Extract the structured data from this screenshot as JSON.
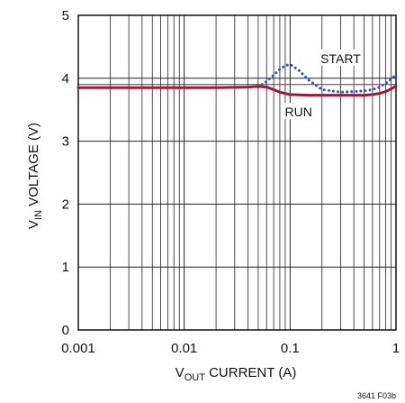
{
  "chart_data": {
    "type": "line",
    "title": "",
    "xlabel": {
      "main": "V",
      "sub": "OUT",
      "rest": " CURRENT (A)"
    },
    "ylabel": {
      "main": "V",
      "sub": "IN",
      "rest": " VOLTAGE (V)"
    },
    "x_scale": "log",
    "xlim": [
      0.001,
      1
    ],
    "ylim": [
      0,
      5
    ],
    "x_ticks": [
      {
        "value": 0.001,
        "label": "0.001"
      },
      {
        "value": 0.01,
        "label": "0.01"
      },
      {
        "value": 0.1,
        "label": "0.1"
      },
      {
        "value": 1,
        "label": "1"
      }
    ],
    "y_ticks": [
      {
        "value": 0,
        "label": "0"
      },
      {
        "value": 1,
        "label": "1"
      },
      {
        "value": 2,
        "label": "2"
      },
      {
        "value": 3,
        "label": "3"
      },
      {
        "value": 4,
        "label": "4"
      },
      {
        "value": 5,
        "label": "5"
      }
    ],
    "grid": true,
    "highlight_line_y": 3.9,
    "series": [
      {
        "name": "START",
        "style": "dotted",
        "color": "#3355aa",
        "x": [
          0.05,
          0.06,
          0.07,
          0.08,
          0.09,
          0.1,
          0.12,
          0.15,
          0.2,
          0.3,
          0.4,
          0.5,
          0.6,
          0.7,
          0.8,
          0.9,
          1.0
        ],
        "y": [
          3.86,
          3.95,
          4.05,
          4.14,
          4.2,
          4.22,
          4.13,
          3.97,
          3.82,
          3.78,
          3.79,
          3.8,
          3.82,
          3.86,
          3.92,
          3.99,
          4.05
        ]
      },
      {
        "name": "RUN",
        "style": "solid",
        "color": "#9b1b3a",
        "x": [
          0.001,
          0.005,
          0.01,
          0.02,
          0.04,
          0.05,
          0.06,
          0.07,
          0.08,
          0.1,
          0.15,
          0.2,
          0.3,
          0.5,
          0.6,
          0.7,
          0.8,
          0.9,
          1.0
        ],
        "y": [
          3.85,
          3.85,
          3.85,
          3.85,
          3.86,
          3.87,
          3.86,
          3.82,
          3.78,
          3.74,
          3.73,
          3.73,
          3.73,
          3.73,
          3.74,
          3.76,
          3.79,
          3.83,
          3.88
        ]
      }
    ],
    "annotations": [
      {
        "text": "START",
        "x": 0.3,
        "y": 4.3
      },
      {
        "text": "RUN",
        "x": 0.12,
        "y": 3.45
      }
    ],
    "figure_id": "3641 F03b"
  }
}
